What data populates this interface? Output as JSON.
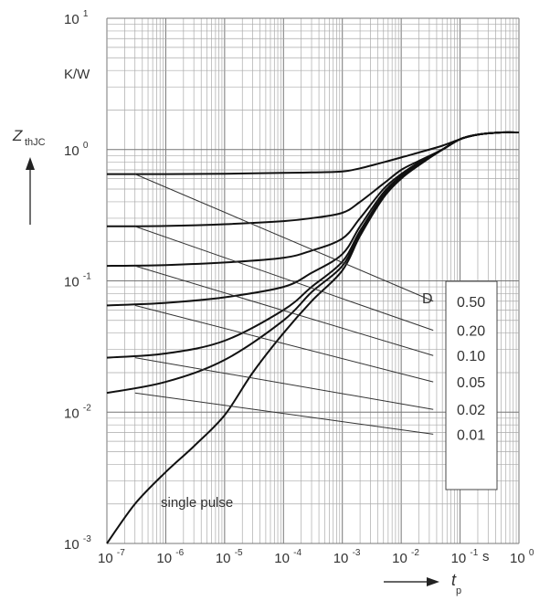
{
  "chart_data": {
    "type": "line",
    "x_scale": "log",
    "y_scale": "log",
    "xlim": [
      1e-07,
      1
    ],
    "ylim": [
      0.001,
      10
    ],
    "grid": true,
    "xlabel": "t",
    "xlabel_sub": "p",
    "ylabel": "Z",
    "ylabel_sub": "thJC",
    "yunit": "K/W",
    "xunit": "s",
    "x_ticks": [
      {
        "base": "10",
        "exp": "-7"
      },
      {
        "base": "10",
        "exp": "-6"
      },
      {
        "base": "10",
        "exp": "-5"
      },
      {
        "base": "10",
        "exp": "-4"
      },
      {
        "base": "10",
        "exp": "-3"
      },
      {
        "base": "10",
        "exp": "-2"
      },
      {
        "base": "10",
        "exp": "-1"
      },
      {
        "base": "10",
        "exp": "0"
      }
    ],
    "y_ticks": [
      {
        "base": "10",
        "exp": "-3"
      },
      {
        "base": "10",
        "exp": "-2"
      },
      {
        "base": "10",
        "exp": "-1"
      },
      {
        "base": "10",
        "exp": "0"
      },
      {
        "base": "10",
        "exp": "1"
      }
    ],
    "legend_title": "D",
    "legend_position": "right",
    "series": [
      {
        "name": "0.50",
        "x": [
          1e-07,
          1e-06,
          1e-05,
          0.0001,
          0.0003,
          0.001,
          0.002,
          0.005,
          0.01,
          0.02,
          0.05,
          0.1,
          0.2,
          0.5,
          1
        ],
        "y": [
          0.65,
          0.65,
          0.655,
          0.665,
          0.67,
          0.68,
          0.72,
          0.8,
          0.87,
          0.95,
          1.07,
          1.2,
          1.3,
          1.35,
          1.35
        ]
      },
      {
        "name": "0.20",
        "x": [
          1e-07,
          1e-06,
          1e-05,
          0.0001,
          0.0003,
          0.001,
          0.002,
          0.005,
          0.01,
          0.02,
          0.05,
          0.1,
          0.2,
          0.5,
          1
        ],
        "y": [
          0.26,
          0.262,
          0.27,
          0.285,
          0.3,
          0.33,
          0.4,
          0.55,
          0.7,
          0.82,
          1.0,
          1.2,
          1.3,
          1.35,
          1.35
        ]
      },
      {
        "name": "0.10",
        "x": [
          1e-07,
          1e-06,
          1e-05,
          0.0001,
          0.0003,
          0.001,
          0.002,
          0.005,
          0.01,
          0.02,
          0.05,
          0.1,
          0.2,
          0.5,
          1
        ],
        "y": [
          0.13,
          0.132,
          0.138,
          0.15,
          0.17,
          0.21,
          0.3,
          0.5,
          0.65,
          0.8,
          1.0,
          1.2,
          1.3,
          1.35,
          1.35
        ]
      },
      {
        "name": "0.05",
        "x": [
          1e-07,
          1e-06,
          1e-05,
          0.0001,
          0.0003,
          0.001,
          0.002,
          0.005,
          0.01,
          0.02,
          0.05,
          0.1,
          0.2,
          0.5,
          1
        ],
        "y": [
          0.065,
          0.068,
          0.075,
          0.09,
          0.115,
          0.16,
          0.26,
          0.47,
          0.63,
          0.79,
          1.0,
          1.2,
          1.3,
          1.35,
          1.35
        ]
      },
      {
        "name": "0.02",
        "x": [
          1e-07,
          1e-06,
          1e-05,
          0.0001,
          0.0003,
          0.001,
          0.002,
          0.005,
          0.01,
          0.02,
          0.05,
          0.1,
          0.2,
          0.5,
          1
        ],
        "y": [
          0.026,
          0.028,
          0.035,
          0.06,
          0.09,
          0.14,
          0.24,
          0.45,
          0.62,
          0.78,
          1.0,
          1.2,
          1.3,
          1.35,
          1.35
        ]
      },
      {
        "name": "0.01",
        "x": [
          1e-07,
          1e-06,
          1e-05,
          0.0001,
          0.0003,
          0.001,
          0.002,
          0.005,
          0.01,
          0.02,
          0.05,
          0.1,
          0.2,
          0.5,
          1
        ],
        "y": [
          0.014,
          0.017,
          0.025,
          0.05,
          0.082,
          0.13,
          0.23,
          0.44,
          0.61,
          0.77,
          1.0,
          1.2,
          1.3,
          1.35,
          1.35
        ]
      },
      {
        "name": "single pulse",
        "x": [
          1e-07,
          3e-07,
          1e-06,
          3e-06,
          1e-05,
          3e-05,
          0.0001,
          0.0003,
          0.001,
          0.002,
          0.005,
          0.01,
          0.02,
          0.05,
          0.1,
          0.2,
          0.5,
          1
        ],
        "y": [
          0.001,
          0.002,
          0.0035,
          0.0055,
          0.0095,
          0.02,
          0.04,
          0.07,
          0.12,
          0.22,
          0.43,
          0.6,
          0.76,
          1.0,
          1.2,
          1.3,
          1.35,
          1.35
        ]
      }
    ],
    "legend_leader_lines": [
      {
        "name": "0.50",
        "from": [
          3e-07,
          0.65
        ],
        "to": [
          0.035,
          0.07
        ]
      },
      {
        "name": "0.20",
        "from": [
          3e-07,
          0.26
        ],
        "to": [
          0.035,
          0.042
        ]
      },
      {
        "name": "0.10",
        "from": [
          3e-07,
          0.13
        ],
        "to": [
          0.035,
          0.027
        ]
      },
      {
        "name": "0.05",
        "from": [
          3e-07,
          0.065
        ],
        "to": [
          0.035,
          0.017
        ]
      },
      {
        "name": "0.02",
        "from": [
          3e-07,
          0.026
        ],
        "to": [
          0.035,
          0.0105
        ]
      },
      {
        "name": "0.01",
        "from": [
          3e-07,
          0.014
        ],
        "to": [
          0.035,
          0.0068
        ]
      }
    ],
    "annotation": "single pulse"
  }
}
